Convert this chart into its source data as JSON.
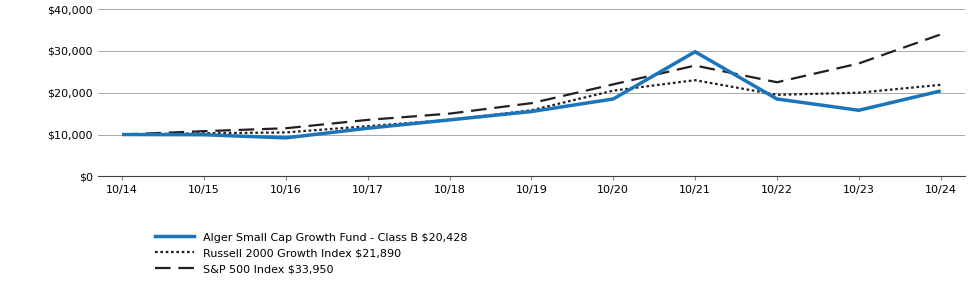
{
  "x_labels": [
    "10/14",
    "10/15",
    "10/16",
    "10/17",
    "10/18",
    "10/19",
    "10/20",
    "10/21",
    "10/22",
    "10/23",
    "10/24"
  ],
  "x_positions": [
    0,
    1,
    2,
    3,
    4,
    5,
    6,
    7,
    8,
    9,
    10
  ],
  "alger": [
    10000,
    9950,
    9200,
    11500,
    13500,
    15500,
    18500,
    29800,
    18500,
    15800,
    20428
  ],
  "russell": [
    10000,
    10300,
    10500,
    12000,
    13500,
    15800,
    20500,
    23000,
    19500,
    20000,
    21890
  ],
  "sp500": [
    10000,
    10800,
    11500,
    13500,
    15000,
    17500,
    22000,
    26500,
    22500,
    27000,
    33950
  ],
  "ylim": [
    0,
    40000
  ],
  "yticks": [
    0,
    10000,
    20000,
    30000,
    40000
  ],
  "ytick_labels": [
    "$0",
    "$10,000",
    "$20,000",
    "$30,000",
    "$40,000"
  ],
  "alger_color": "#1B75BB",
  "russell_color": "#231F20",
  "sp500_color": "#231F20",
  "grid_color": "#9B9B9B",
  "legend": [
    "Alger Small Cap Growth Fund - Class B $20,428",
    "Russell 2000 Growth Index $21,890",
    "S&P 500 Index $33,950"
  ]
}
